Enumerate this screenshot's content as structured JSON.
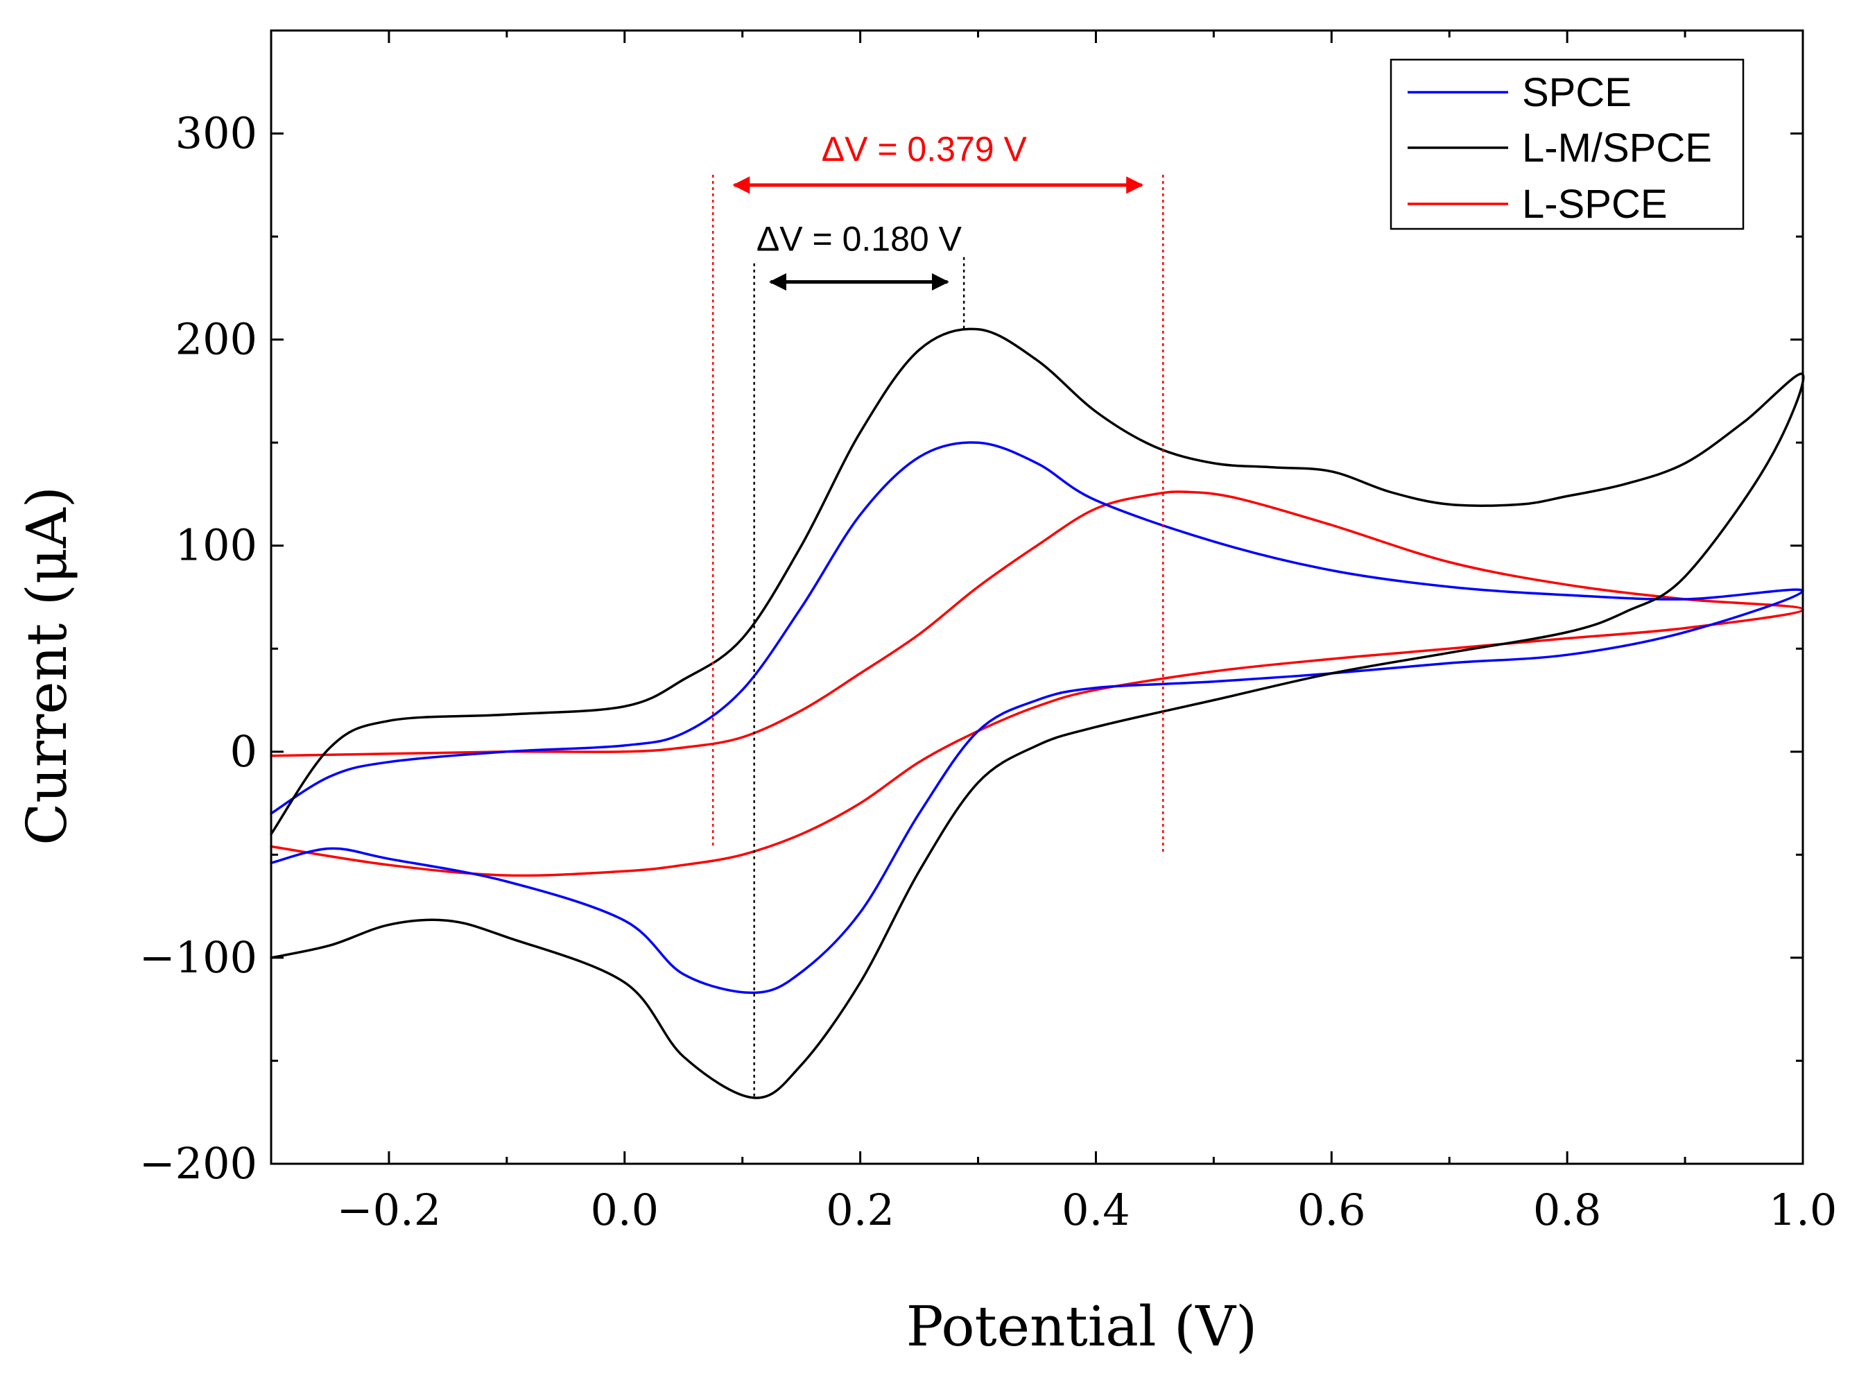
{
  "chart_data": {
    "type": "line",
    "xlabel": "Potential (V)",
    "ylabel": "Current (μA)",
    "xlim": [
      -0.3,
      1.0
    ],
    "ylim": [
      -200,
      350
    ],
    "xticks": [
      -0.2,
      0.0,
      0.2,
      0.4,
      0.6,
      0.8,
      1.0
    ],
    "xtick_labels": [
      "−0.2",
      "0.0",
      "0.2",
      "0.4",
      "0.6",
      "0.8",
      "1.0"
    ],
    "xminor": [
      -0.3,
      -0.1,
      0.1,
      0.3,
      0.5,
      0.7,
      0.9
    ],
    "yticks": [
      -200,
      -100,
      0,
      100,
      200,
      300
    ],
    "ytick_labels": [
      "−200",
      "−100",
      "0",
      "100",
      "200",
      "300"
    ],
    "yminor": [
      -150,
      -50,
      50,
      150,
      250
    ],
    "legend_position": "top-right",
    "series": [
      {
        "name": "SPCE",
        "color": "#0000ff",
        "points": [
          [
            -0.3,
            -30
          ],
          [
            -0.25,
            -12
          ],
          [
            -0.2,
            -5
          ],
          [
            -0.1,
            0
          ],
          [
            0.0,
            3
          ],
          [
            0.05,
            9
          ],
          [
            0.1,
            30
          ],
          [
            0.15,
            70
          ],
          [
            0.2,
            115
          ],
          [
            0.25,
            143
          ],
          [
            0.3,
            150
          ],
          [
            0.35,
            140
          ],
          [
            0.4,
            122
          ],
          [
            0.5,
            102
          ],
          [
            0.6,
            88
          ],
          [
            0.7,
            80
          ],
          [
            0.8,
            76
          ],
          [
            0.9,
            74
          ],
          [
            1.0,
            78
          ],
          [
            0.9,
            58
          ],
          [
            0.8,
            47
          ],
          [
            0.7,
            43
          ],
          [
            0.6,
            38
          ],
          [
            0.5,
            34
          ],
          [
            0.4,
            31
          ],
          [
            0.35,
            25
          ],
          [
            0.3,
            10
          ],
          [
            0.25,
            -30
          ],
          [
            0.2,
            -78
          ],
          [
            0.15,
            -107
          ],
          [
            0.11,
            -117
          ],
          [
            0.05,
            -108
          ],
          [
            0.0,
            -82
          ],
          [
            -0.1,
            -63
          ],
          [
            -0.2,
            -52
          ],
          [
            -0.25,
            -47
          ],
          [
            -0.3,
            -54
          ]
        ]
      },
      {
        "name": "L-M/SPCE",
        "color": "#000000",
        "points": [
          [
            -0.3,
            -40
          ],
          [
            -0.25,
            2
          ],
          [
            -0.2,
            15
          ],
          [
            -0.1,
            18
          ],
          [
            0.0,
            22
          ],
          [
            0.05,
            35
          ],
          [
            0.1,
            55
          ],
          [
            0.15,
            100
          ],
          [
            0.2,
            155
          ],
          [
            0.25,
            195
          ],
          [
            0.3,
            205
          ],
          [
            0.35,
            190
          ],
          [
            0.4,
            165
          ],
          [
            0.45,
            148
          ],
          [
            0.5,
            140
          ],
          [
            0.55,
            138
          ],
          [
            0.6,
            136
          ],
          [
            0.65,
            126
          ],
          [
            0.7,
            120
          ],
          [
            0.76,
            120
          ],
          [
            0.8,
            124
          ],
          [
            0.85,
            130
          ],
          [
            0.9,
            140
          ],
          [
            0.95,
            160
          ],
          [
            1.0,
            183
          ],
          [
            0.97,
            140
          ],
          [
            0.9,
            85
          ],
          [
            0.85,
            68
          ],
          [
            0.8,
            58
          ],
          [
            0.7,
            48
          ],
          [
            0.6,
            38
          ],
          [
            0.5,
            25
          ],
          [
            0.4,
            12
          ],
          [
            0.35,
            3
          ],
          [
            0.3,
            -15
          ],
          [
            0.25,
            -58
          ],
          [
            0.2,
            -112
          ],
          [
            0.15,
            -152
          ],
          [
            0.11,
            -168
          ],
          [
            0.05,
            -148
          ],
          [
            0.0,
            -112
          ],
          [
            -0.1,
            -90
          ],
          [
            -0.15,
            -82
          ],
          [
            -0.2,
            -84
          ],
          [
            -0.25,
            -94
          ],
          [
            -0.3,
            -100
          ]
        ]
      },
      {
        "name": "L-SPCE",
        "color": "#ff0000",
        "points": [
          [
            -0.3,
            -2
          ],
          [
            -0.2,
            -1
          ],
          [
            -0.1,
            0
          ],
          [
            0.0,
            0
          ],
          [
            0.05,
            2
          ],
          [
            0.1,
            7
          ],
          [
            0.15,
            20
          ],
          [
            0.2,
            38
          ],
          [
            0.25,
            57
          ],
          [
            0.3,
            80
          ],
          [
            0.35,
            100
          ],
          [
            0.4,
            118
          ],
          [
            0.45,
            125
          ],
          [
            0.48,
            126
          ],
          [
            0.52,
            123
          ],
          [
            0.6,
            110
          ],
          [
            0.7,
            92
          ],
          [
            0.8,
            81
          ],
          [
            0.9,
            74
          ],
          [
            1.0,
            69
          ],
          [
            0.9,
            60
          ],
          [
            0.8,
            55
          ],
          [
            0.7,
            50
          ],
          [
            0.6,
            45
          ],
          [
            0.5,
            39
          ],
          [
            0.4,
            30
          ],
          [
            0.35,
            22
          ],
          [
            0.3,
            10
          ],
          [
            0.25,
            -5
          ],
          [
            0.2,
            -25
          ],
          [
            0.15,
            -40
          ],
          [
            0.1,
            -50
          ],
          [
            0.05,
            -55
          ],
          [
            0.0,
            -58
          ],
          [
            -0.1,
            -60
          ],
          [
            -0.2,
            -55
          ],
          [
            -0.3,
            -46
          ]
        ]
      }
    ],
    "annotations": [
      {
        "id": "delta-red",
        "label": "ΔV = 0.379 V",
        "color": "#ff0000",
        "x_start": 0.075,
        "x_end": 0.457,
        "arrow_y": 275,
        "guide_top": 280,
        "guide_bottom": -47
      },
      {
        "id": "delta-black",
        "label": "ΔV = 0.180 V",
        "color": "#000000",
        "x_start": 0.11,
        "x_end": 0.288,
        "arrow_y": 228,
        "guide_top_start": 237,
        "guide_bottom_start": -168,
        "guide_top_end": 240,
        "guide_bottom_end": 205
      }
    ]
  }
}
